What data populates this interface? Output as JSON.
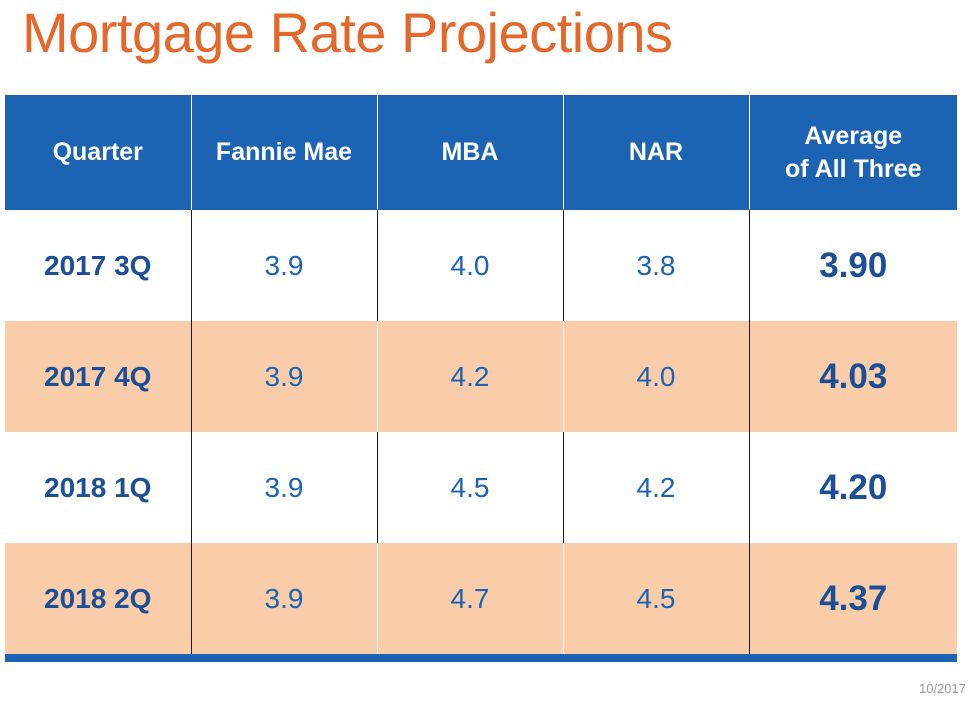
{
  "title": "Mortgage Rate Projections",
  "table": {
    "headers": [
      "Quarter",
      "Fannie Mae",
      "MBA",
      "NAR",
      "Average of All Three"
    ],
    "header_lines": {
      "avg_line1": "Average",
      "avg_line2": "of All Three"
    },
    "rows": [
      {
        "quarter": "2017 3Q",
        "fannie_mae": "3.9",
        "mba": "4.0",
        "nar": "3.8",
        "average": "3.90"
      },
      {
        "quarter": "2017 4Q",
        "fannie_mae": "3.9",
        "mba": "4.2",
        "nar": "4.0",
        "average": "4.03"
      },
      {
        "quarter": "2018 1Q",
        "fannie_mae": "3.9",
        "mba": "4.5",
        "nar": "4.2",
        "average": "4.20"
      },
      {
        "quarter": "2018 2Q",
        "fannie_mae": "3.9",
        "mba": "4.7",
        "nar": "4.5",
        "average": "4.37"
      }
    ]
  },
  "footer_date": "10/2017",
  "colors": {
    "title": "#e2692b",
    "header_bg": "#1c63b3",
    "stripe": "#f9cda9",
    "text_blue": "#1c63b3"
  }
}
